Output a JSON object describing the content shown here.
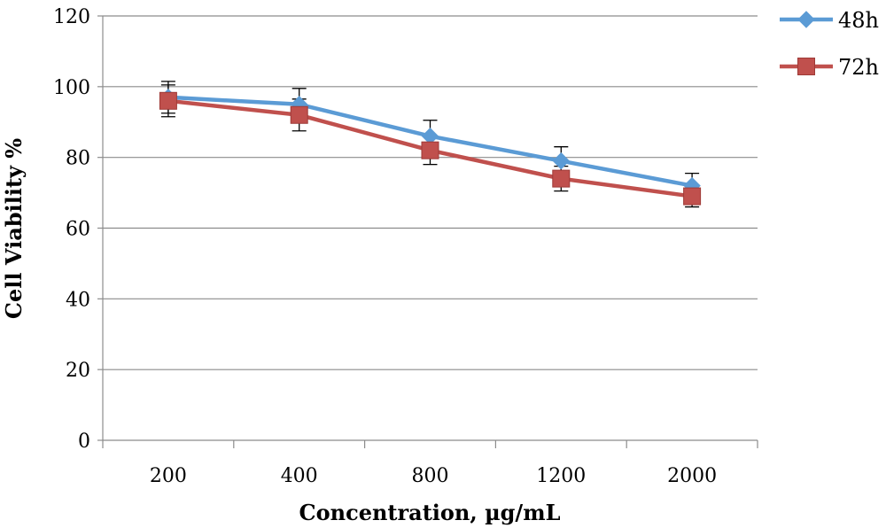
{
  "chart_data": {
    "type": "line",
    "categories": [
      "200",
      "400",
      "800",
      "1200",
      "2000"
    ],
    "xlabel": "Concentration, µg/mL",
    "ylabel": "Cell Viability %",
    "ylim": [
      0,
      120
    ],
    "yticks": [
      0,
      20,
      40,
      60,
      80,
      100,
      120
    ],
    "grid": "horizontal",
    "legend_position": "top-right",
    "error_bars": true,
    "series": [
      {
        "name": "48h",
        "values": [
          97,
          95,
          86,
          79,
          72
        ],
        "errors": [
          4.5,
          4.5,
          4.5,
          4.0,
          3.5
        ],
        "color": "#5b9bd5",
        "marker": "diamond"
      },
      {
        "name": "72h",
        "values": [
          96,
          92,
          82,
          74,
          69
        ],
        "errors": [
          4.5,
          4.5,
          4.0,
          3.5,
          3.0
        ],
        "color": "#c0504d",
        "marker": "square"
      }
    ]
  }
}
